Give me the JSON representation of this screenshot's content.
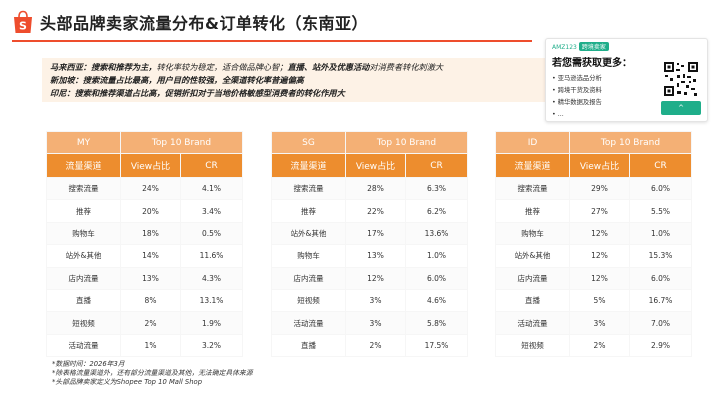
{
  "title": "头部品牌卖家流量分布&订单转化（东南亚）",
  "notes": {
    "my": {
      "l1": "马来西亚：",
      "l2": "搜索和推荐为主，",
      "l3": "转化率较为稳定，适合做品牌心智；",
      "l4": "直播、站外及优惠活动",
      "l5": "对消费者转化刺激大"
    },
    "sg": {
      "l1": "新加坡：",
      "l2": "搜索流量占比最高，用户目的性较强，",
      "l3": "全渠道转化率普遍偏高"
    },
    "id": {
      "l1": "印尼：",
      "l2": "搜索和推荐渠道占比高，",
      "l3": "促销折扣对于当地价格敏感型消费者的转化作用大"
    }
  },
  "promo": {
    "head": "AMZ123",
    "head_tag": "跨境卖家",
    "title": "若您需获取更多：",
    "items": [
      "• 亚马逊选品分析",
      "• 跨境干货及资料",
      "• 精华数据及报告",
      "• ..."
    ],
    "button": "^"
  },
  "tables": [
    {
      "market": "MY",
      "brand_header": "Top 10 Brand",
      "col_channel": "流量渠道",
      "col_view": "View占比",
      "col_cr": "CR",
      "rows": [
        {
          "channel": "搜索流量",
          "view": "24%",
          "cr": "4.1%"
        },
        {
          "channel": "推荐",
          "view": "20%",
          "cr": "3.4%"
        },
        {
          "channel": "购物车",
          "view": "18%",
          "cr": "0.5%"
        },
        {
          "channel": "站外&其他",
          "view": "14%",
          "cr": "11.6%"
        },
        {
          "channel": "店内流量",
          "view": "13%",
          "cr": "4.3%"
        },
        {
          "channel": "直播",
          "view": "8%",
          "cr": "13.1%"
        },
        {
          "channel": "短视频",
          "view": "2%",
          "cr": "1.9%"
        },
        {
          "channel": "活动流量",
          "view": "1%",
          "cr": "3.2%"
        }
      ]
    },
    {
      "market": "SG",
      "brand_header": "Top 10 Brand",
      "col_channel": "流量渠道",
      "col_view": "View占比",
      "col_cr": "CR",
      "rows": [
        {
          "channel": "搜索流量",
          "view": "28%",
          "cr": "6.3%"
        },
        {
          "channel": "推荐",
          "view": "22%",
          "cr": "6.2%"
        },
        {
          "channel": "站外&其他",
          "view": "17%",
          "cr": "13.6%"
        },
        {
          "channel": "购物车",
          "view": "13%",
          "cr": "1.0%"
        },
        {
          "channel": "店内流量",
          "view": "12%",
          "cr": "6.0%"
        },
        {
          "channel": "短视频",
          "view": "3%",
          "cr": "4.6%"
        },
        {
          "channel": "活动流量",
          "view": "3%",
          "cr": "5.8%"
        },
        {
          "channel": "直播",
          "view": "2%",
          "cr": "17.5%"
        }
      ]
    },
    {
      "market": "ID",
      "brand_header": "Top 10 Brand",
      "col_channel": "流量渠道",
      "col_view": "View占比",
      "col_cr": "CR",
      "rows": [
        {
          "channel": "搜索流量",
          "view": "29%",
          "cr": "6.0%"
        },
        {
          "channel": "推荐",
          "view": "27%",
          "cr": "5.5%"
        },
        {
          "channel": "购物车",
          "view": "12%",
          "cr": "1.0%"
        },
        {
          "channel": "站外&其他",
          "view": "12%",
          "cr": "15.3%"
        },
        {
          "channel": "店内流量",
          "view": "12%",
          "cr": "6.0%"
        },
        {
          "channel": "直播",
          "view": "5%",
          "cr": "16.7%"
        },
        {
          "channel": "活动流量",
          "view": "3%",
          "cr": "7.0%"
        },
        {
          "channel": "短视频",
          "view": "2%",
          "cr": "2.9%"
        }
      ]
    }
  ],
  "footer": {
    "l1": "*数据时间：2026年3月",
    "l2": "*除表格流量渠道外，还有部分流量渠道及其他，无法确定具体来源",
    "l3": "*头部品牌卖家定义为Shopee Top 10 Mall Shop"
  },
  "colors": {
    "accent": "#ee4d2d",
    "header_light": "#f4b075",
    "header_dark": "#ed8d2e",
    "notes_bg": "#fdf2e6",
    "promo_green": "#1fae8a"
  }
}
